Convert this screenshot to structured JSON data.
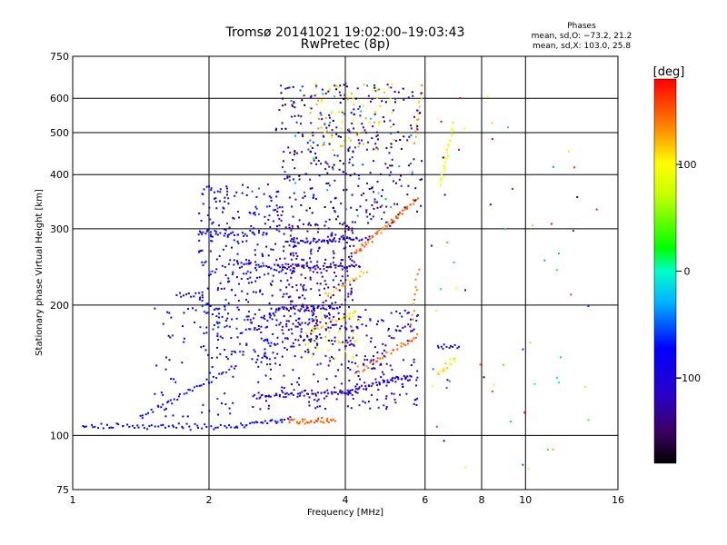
{
  "chart_data": {
    "type": "scatter",
    "title": "Tromsø 20141021 19:02:00–19:03:43",
    "subtitle": "RwPretec (8p)",
    "xlabel": "Frequency [MHz]",
    "ylabel": "Stationary phase Virtual Height [km]",
    "x_scale": "log",
    "y_scale": "log",
    "xlim": [
      1,
      16
    ],
    "ylim": [
      75,
      750
    ],
    "x_ticks": [
      1,
      2,
      4,
      6,
      8,
      10,
      16
    ],
    "y_ticks": [
      75,
      100,
      200,
      300,
      400,
      500,
      600,
      750
    ],
    "x_gridlines": [
      2,
      4,
      6,
      8,
      10
    ],
    "y_gridlines": [
      100,
      200,
      300,
      400,
      500,
      600
    ],
    "grid": true,
    "phase_stats": {
      "heading": "Phases",
      "line_o": "mean, sd,O: −73.2, 21.2",
      "line_x": "mean, sd,X: 103.0, 25.8"
    },
    "colorbar": {
      "label": "[deg]",
      "range": [
        -180,
        180
      ],
      "ticks": [
        "100",
        "0",
        "−100"
      ],
      "tick_values": [
        100,
        0,
        -100
      ],
      "colormap": "rainbow"
    },
    "traces": [
      {
        "kind": "line",
        "x0": 1.05,
        "x1": 2.3,
        "y0": 105,
        "y1": 105,
        "n": 60,
        "phase": -80
      },
      {
        "kind": "line",
        "x0": 2.3,
        "x1": 3.0,
        "y0": 105,
        "y1": 109,
        "n": 30,
        "phase": -75
      },
      {
        "kind": "line",
        "x0": 1.4,
        "x1": 2.3,
        "y0": 110,
        "y1": 145,
        "n": 40,
        "phase": -80
      },
      {
        "kind": "line",
        "x0": 3.0,
        "x1": 3.8,
        "y0": 108,
        "y1": 108,
        "n": 35,
        "phase": 150
      },
      {
        "kind": "line",
        "x0": 2.5,
        "x1": 4.2,
        "y0": 123,
        "y1": 126,
        "n": 60,
        "phase": -110
      },
      {
        "kind": "line",
        "x0": 4.0,
        "x1": 5.6,
        "y0": 126,
        "y1": 137,
        "n": 45,
        "phase": -100
      },
      {
        "kind": "line",
        "x0": 4.2,
        "x1": 5.8,
        "y0": 140,
        "y1": 170,
        "n": 35,
        "phase": 145
      },
      {
        "kind": "line",
        "x0": 3.3,
        "x1": 4.2,
        "y0": 172,
        "y1": 192,
        "n": 25,
        "phase": 110
      },
      {
        "kind": "line",
        "x0": 2.8,
        "x1": 3.9,
        "y0": 196,
        "y1": 198,
        "n": 40,
        "phase": -95
      },
      {
        "kind": "line",
        "x0": 1.7,
        "x1": 1.9,
        "y0": 211,
        "y1": 211,
        "n": 10,
        "phase": -80
      },
      {
        "kind": "line",
        "x0": 2.8,
        "x1": 4.3,
        "y0": 246,
        "y1": 246,
        "n": 55,
        "phase": -110
      },
      {
        "kind": "line",
        "x0": 4.2,
        "x1": 5.8,
        "y0": 263,
        "y1": 355,
        "n": 55,
        "phase": 145
      },
      {
        "kind": "line",
        "x0": 3.6,
        "x1": 4.5,
        "y0": 210,
        "y1": 240,
        "n": 20,
        "phase": 120
      },
      {
        "kind": "line",
        "x0": 2.3,
        "x1": 3.1,
        "y0": 250,
        "y1": 240,
        "n": 25,
        "phase": -80
      },
      {
        "kind": "line",
        "x0": 1.9,
        "x1": 2.7,
        "y0": 292,
        "y1": 292,
        "n": 35,
        "phase": -80
      },
      {
        "kind": "line",
        "x0": 3.0,
        "x1": 4.5,
        "y0": 280,
        "y1": 286,
        "n": 45,
        "phase": -90
      },
      {
        "kind": "line",
        "x0": 6.4,
        "x1": 7.0,
        "y0": 138,
        "y1": 150,
        "n": 15,
        "phase": 115
      },
      {
        "kind": "line",
        "x0": 6.4,
        "x1": 7.1,
        "y0": 160,
        "y1": 160,
        "n": 12,
        "phase": -95
      },
      {
        "kind": "line",
        "x0": 6.5,
        "x1": 6.9,
        "y0": 380,
        "y1": 520,
        "n": 25,
        "phase": 95
      },
      {
        "kind": "line",
        "x0": 5.7,
        "x1": 5.9,
        "y0": 480,
        "y1": 640,
        "n": 15,
        "phase": 130
      },
      {
        "kind": "line",
        "x0": 5.6,
        "x1": 5.8,
        "y0": 180,
        "y1": 240,
        "n": 12,
        "phase": 140
      },
      {
        "kind": "cloud",
        "x0": 1.9,
        "x1": 2.9,
        "y0": 150,
        "y1": 380,
        "n": 320,
        "phase": -85,
        "spread": 25
      },
      {
        "kind": "cloud",
        "x0": 2.9,
        "x1": 4.2,
        "y0": 160,
        "y1": 310,
        "n": 260,
        "phase": -120,
        "spread": 25
      },
      {
        "kind": "cloud",
        "x0": 2.5,
        "x1": 5.8,
        "y0": 115,
        "y1": 195,
        "n": 300,
        "phase": -100,
        "spread": 30
      },
      {
        "kind": "cloud",
        "x0": 2.8,
        "x1": 5.9,
        "y0": 300,
        "y1": 650,
        "n": 380,
        "phase": -110,
        "spread": 70
      },
      {
        "kind": "cloud",
        "x0": 3.3,
        "x1": 5.2,
        "y0": 450,
        "y1": 650,
        "n": 70,
        "phase": 115,
        "spread": 25
      },
      {
        "kind": "cloud",
        "x0": 1.5,
        "x1": 2.3,
        "y0": 110,
        "y1": 200,
        "n": 60,
        "phase": -80,
        "spread": 15
      },
      {
        "kind": "cloud",
        "x0": 3.2,
        "x1": 4.3,
        "y0": 150,
        "y1": 195,
        "n": 40,
        "phase": 100,
        "spread": 30
      },
      {
        "kind": "cloud",
        "x0": 6.2,
        "x1": 14.5,
        "y0": 80,
        "y1": 620,
        "n": 60,
        "phase": 60,
        "spread": 160
      }
    ]
  }
}
